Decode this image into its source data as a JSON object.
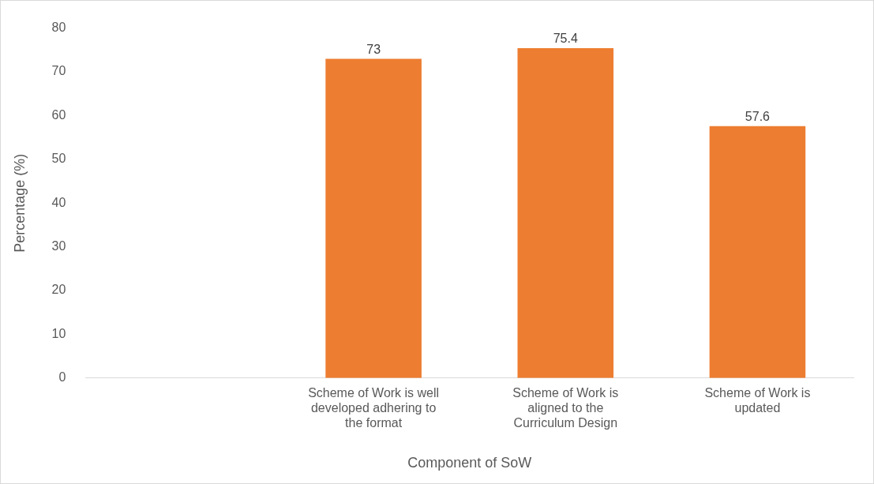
{
  "chart_data": {
    "type": "bar",
    "xlabel": "Component of SoW",
    "ylabel": "Percentage (%)",
    "categories": [
      null,
      "Scheme of Work is well developed adhering to the format",
      "Scheme of Work is aligned to the Curriculum Design",
      "Scheme of Work is updated"
    ],
    "values": [
      null,
      73,
      75.4,
      57.6
    ],
    "color": "#ed7d31",
    "ylim": [
      0,
      80
    ],
    "yticks": [
      0,
      10,
      20,
      30,
      40,
      50,
      60,
      70,
      80
    ],
    "grid": false,
    "data_labels": true
  }
}
